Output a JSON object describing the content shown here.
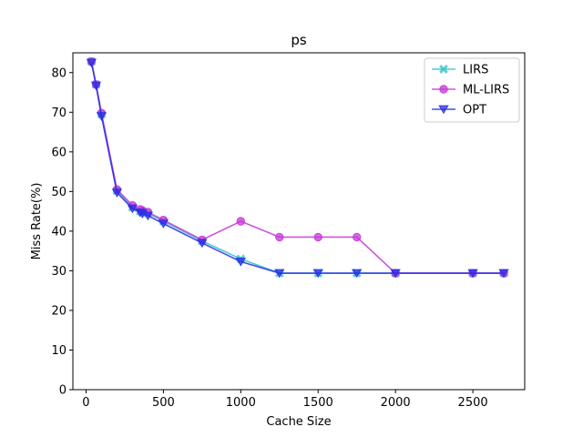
{
  "chart_data": {
    "type": "line",
    "title": "ps",
    "xlabel": "Cache Size",
    "ylabel": "Miss Rate(%)",
    "xlim": [
      -85,
      2835
    ],
    "ylim": [
      0,
      85
    ],
    "xticks": [
      0,
      500,
      1000,
      1500,
      2000,
      2500
    ],
    "yticks": [
      0,
      10,
      20,
      30,
      40,
      50,
      60,
      70,
      80
    ],
    "grid": false,
    "legend_position": "top-right",
    "series": [
      {
        "name": "LIRS",
        "color": "#2ec4c8",
        "marker": "x",
        "x": [
          35,
          65,
          100,
          200,
          300,
          350,
          365,
          400,
          500,
          750,
          1000,
          1250,
          1500,
          1750,
          2000,
          2500,
          2700
        ],
        "y": [
          82.8,
          77.0,
          69.5,
          50.2,
          46.0,
          45.0,
          44.8,
          44.5,
          42.5,
          37.5,
          33.0,
          29.4,
          29.4,
          29.4,
          29.4,
          29.4,
          29.4
        ]
      },
      {
        "name": "ML-LIRS",
        "color": "#c535d6",
        "marker": "o",
        "x": [
          35,
          65,
          100,
          200,
          300,
          350,
          365,
          400,
          500,
          750,
          1000,
          1250,
          1500,
          1750,
          2000,
          2500,
          2700
        ],
        "y": [
          82.8,
          77.0,
          69.8,
          50.5,
          46.5,
          45.5,
          45.2,
          44.8,
          42.8,
          37.8,
          42.5,
          38.5,
          38.5,
          38.5,
          29.4,
          29.4,
          29.4
        ]
      },
      {
        "name": "OPT",
        "color": "#2a2ee6",
        "marker": "v",
        "x": [
          35,
          65,
          100,
          200,
          300,
          350,
          365,
          400,
          500,
          750,
          1000,
          1250,
          1500,
          1750,
          2000,
          2500,
          2700
        ],
        "y": [
          82.5,
          76.7,
          69.0,
          49.7,
          45.7,
          44.7,
          44.4,
          43.9,
          41.9,
          37.0,
          32.3,
          29.4,
          29.4,
          29.4,
          29.4,
          29.4,
          29.4
        ]
      }
    ]
  }
}
